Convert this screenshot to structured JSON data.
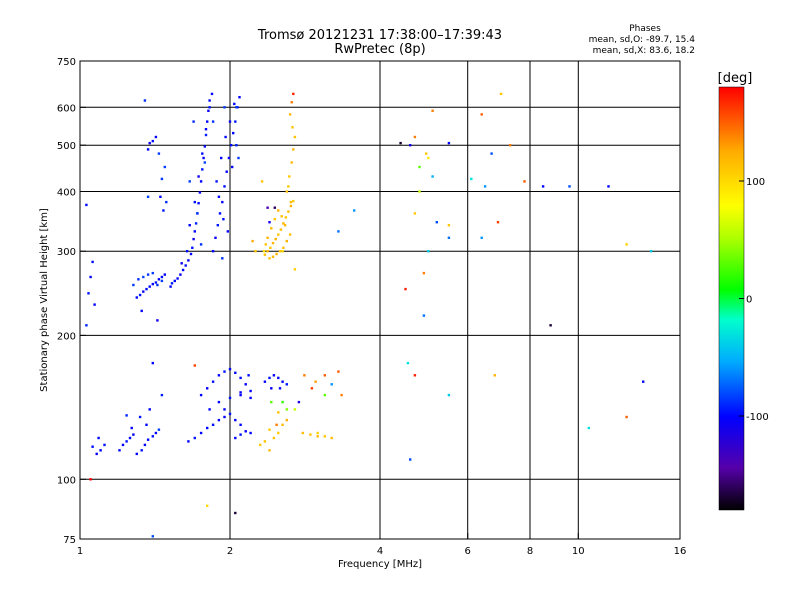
{
  "header": {
    "title_line1": "Tromsø 20121231 17:38:00–17:39:43",
    "title_line2": "RwPretec (8p)",
    "stats_title": "Phases",
    "stats_line1": "mean, sd,O: -89.7, 15.4",
    "stats_line2": "mean, sd,X: 83.6, 18.2"
  },
  "colorbar": {
    "label": "[deg]",
    "min": -180,
    "max": 180,
    "ticks": [
      {
        "value": 100,
        "label": "100"
      },
      {
        "value": 0,
        "label": "0"
      },
      {
        "value": -100,
        "label": "-100"
      }
    ]
  },
  "chart_data": {
    "type": "scatter",
    "title": "Tromsø 20121231 17:38:00–17:39:43",
    "subtitle": "RwPretec (8p)",
    "xlabel": "Frequency [MHz]",
    "ylabel": "Stationary phase Virtual Height [km]",
    "x_scale": "log",
    "y_scale": "log",
    "xlim": [
      1,
      16
    ],
    "ylim": [
      75,
      750
    ],
    "xticks": [
      {
        "v": 1,
        "l": "1"
      },
      {
        "v": 2,
        "l": "2"
      },
      {
        "v": 4,
        "l": "4"
      },
      {
        "v": 6,
        "l": "6"
      },
      {
        "v": 8,
        "l": "8"
      },
      {
        "v": 10,
        "l": "10"
      },
      {
        "v": 16,
        "l": "16"
      }
    ],
    "yticks": [
      {
        "v": 75,
        "l": "75"
      },
      {
        "v": 100,
        "l": "100"
      },
      {
        "v": 200,
        "l": "200"
      },
      {
        "v": 300,
        "l": "300"
      },
      {
        "v": 400,
        "l": "400"
      },
      {
        "v": 500,
        "l": "500"
      },
      {
        "v": 600,
        "l": "600"
      },
      {
        "v": 750,
        "l": "750"
      }
    ],
    "grid_x": [
      2,
      4,
      6,
      8,
      10
    ],
    "grid_y": [
      100,
      200,
      300,
      400,
      500,
      600
    ],
    "color_key": "phase_deg",
    "points": [
      [
        1.52,
        253,
        -100
      ],
      [
        1.53,
        257,
        -95
      ],
      [
        1.55,
        260,
        -102
      ],
      [
        1.57,
        263,
        -98
      ],
      [
        1.59,
        268,
        -105
      ],
      [
        1.61,
        274,
        -100
      ],
      [
        1.63,
        280,
        -97
      ],
      [
        1.65,
        287,
        -103
      ],
      [
        1.67,
        296,
        -100
      ],
      [
        1.68,
        305,
        -95
      ],
      [
        1.69,
        318,
        -110
      ],
      [
        1.7,
        330,
        -100
      ],
      [
        1.71,
        343,
        -92
      ],
      [
        1.72,
        360,
        -102
      ],
      [
        1.73,
        378,
        -98
      ],
      [
        1.74,
        398,
        -105
      ],
      [
        1.75,
        420,
        -100
      ],
      [
        1.76,
        445,
        -96
      ],
      [
        1.77,
        470,
        -104
      ],
      [
        1.78,
        497,
        -99
      ],
      [
        1.79,
        525,
        -93
      ],
      [
        1.8,
        560,
        -100
      ],
      [
        1.81,
        590,
        -108
      ],
      [
        1.82,
        620,
        -100
      ],
      [
        1.6,
        283,
        -105
      ],
      [
        1.64,
        300,
        -97
      ],
      [
        1.66,
        340,
        -101
      ],
      [
        1.7,
        380,
        -96
      ],
      [
        1.73,
        430,
        -108
      ],
      [
        1.76,
        480,
        -99
      ],
      [
        1.79,
        540,
        -102
      ],
      [
        1.82,
        600,
        -95
      ],
      [
        1.84,
        640,
        -100
      ],
      [
        1.85,
        300,
        -100
      ],
      [
        1.87,
        320,
        -105
      ],
      [
        1.89,
        340,
        -96
      ],
      [
        1.91,
        360,
        -99
      ],
      [
        1.93,
        380,
        -103
      ],
      [
        1.95,
        410,
        -97
      ],
      [
        1.97,
        440,
        -101
      ],
      [
        1.99,
        470,
        -104
      ],
      [
        2.01,
        500,
        -98
      ],
      [
        2.03,
        530,
        -100
      ],
      [
        2.05,
        560,
        -95
      ],
      [
        2.07,
        600,
        -102
      ],
      [
        2.09,
        630,
        -100
      ],
      [
        1.88,
        420,
        -95
      ],
      [
        1.92,
        470,
        -102
      ],
      [
        1.96,
        520,
        -98
      ],
      [
        2.0,
        560,
        -105
      ],
      [
        2.04,
        610,
        -100
      ],
      [
        1.9,
        390,
        -100
      ],
      [
        1.94,
        350,
        -96
      ],
      [
        1.98,
        330,
        -103
      ],
      [
        2.02,
        450,
        -100
      ],
      [
        2.06,
        500,
        -92
      ],
      [
        1.72,
        360,
        -85
      ],
      [
        1.75,
        310,
        -88
      ],
      [
        1.78,
        460,
        -82
      ],
      [
        1.85,
        560,
        -88
      ],
      [
        1.95,
        600,
        -86
      ],
      [
        1.69,
        560,
        -90
      ],
      [
        2.08,
        470,
        -84
      ],
      [
        1.93,
        290,
        -89
      ],
      [
        1.66,
        420,
        -84
      ],
      [
        2.06,
        600,
        -87
      ],
      [
        1.3,
        240,
        -100
      ],
      [
        1.32,
        243,
        -95
      ],
      [
        1.34,
        247,
        -105
      ],
      [
        1.36,
        250,
        -98
      ],
      [
        1.38,
        253,
        -102
      ],
      [
        1.4,
        256,
        -100
      ],
      [
        1.42,
        258,
        -96
      ],
      [
        1.44,
        262,
        -104
      ],
      [
        1.46,
        265,
        -99
      ],
      [
        1.48,
        268,
        -101
      ],
      [
        1.28,
        255,
        -85
      ],
      [
        1.31,
        262,
        -88
      ],
      [
        1.34,
        265,
        -82
      ],
      [
        1.37,
        268,
        -86
      ],
      [
        1.4,
        270,
        -84
      ],
      [
        1.43,
        255,
        -88
      ],
      [
        1.33,
        225,
        -100
      ],
      [
        1.43,
        215,
        -108
      ],
      [
        1.05,
        265,
        -100
      ],
      [
        1.04,
        245,
        -95
      ],
      [
        1.06,
        285,
        -98
      ],
      [
        1.07,
        232,
        -102
      ],
      [
        1.03,
        210,
        -92
      ],
      [
        1.37,
        490,
        -100
      ],
      [
        1.38,
        505,
        -105
      ],
      [
        1.4,
        510,
        -98
      ],
      [
        1.42,
        520,
        -102
      ],
      [
        1.45,
        390,
        -100
      ],
      [
        1.47,
        365,
        -96
      ],
      [
        1.46,
        425,
        -86
      ],
      [
        1.48,
        450,
        -84
      ],
      [
        1.44,
        480,
        -85
      ],
      [
        1.49,
        380,
        -88
      ],
      [
        1.37,
        390,
        -84
      ],
      [
        1.35,
        620,
        -88
      ],
      [
        1.46,
        260,
        -85
      ],
      [
        1.03,
        375,
        -100
      ],
      [
        2.35,
        295,
        115
      ],
      [
        2.38,
        300,
        120
      ],
      [
        2.41,
        305,
        110
      ],
      [
        2.44,
        312,
        118
      ],
      [
        2.47,
        318,
        122
      ],
      [
        2.5,
        325,
        112
      ],
      [
        2.53,
        333,
        116
      ],
      [
        2.56,
        343,
        120
      ],
      [
        2.59,
        353,
        110
      ],
      [
        2.62,
        363,
        115
      ],
      [
        2.65,
        373,
        122
      ],
      [
        2.68,
        382,
        108
      ],
      [
        2.4,
        290,
        112
      ],
      [
        2.44,
        292,
        118
      ],
      [
        2.48,
        296,
        120
      ],
      [
        2.52,
        300,
        110
      ],
      [
        2.56,
        305,
        116
      ],
      [
        2.6,
        315,
        122
      ],
      [
        2.64,
        325,
        113
      ],
      [
        2.58,
        340,
        118
      ],
      [
        2.54,
        355,
        115
      ],
      [
        2.5,
        365,
        120
      ],
      [
        2.46,
        350,
        110
      ],
      [
        2.42,
        335,
        117
      ],
      [
        2.38,
        320,
        121
      ],
      [
        2.36,
        310,
        112
      ],
      [
        2.6,
        400,
        115
      ],
      [
        2.63,
        430,
        110
      ],
      [
        2.66,
        460,
        118
      ],
      [
        2.68,
        490,
        120
      ],
      [
        2.7,
        520,
        114
      ],
      [
        2.67,
        545,
        112
      ],
      [
        2.64,
        580,
        118
      ],
      [
        2.66,
        615,
        140
      ],
      [
        2.68,
        640,
        170
      ],
      [
        2.62,
        410,
        108
      ],
      [
        2.65,
        380,
        116
      ],
      [
        2.38,
        370,
        -140
      ],
      [
        2.46,
        370,
        -160
      ],
      [
        2.25,
        300,
        110
      ],
      [
        2.22,
        315,
        125
      ],
      [
        2.32,
        420,
        112
      ],
      [
        2.4,
        345,
        -110
      ],
      [
        2.34,
        300,
        95
      ],
      [
        2.55,
        300,
        100
      ],
      [
        2.7,
        275,
        105
      ],
      [
        1.1,
        115,
        -100
      ],
      [
        1.12,
        118,
        -95
      ],
      [
        1.08,
        113,
        -105
      ],
      [
        1.06,
        117,
        -98
      ],
      [
        1.09,
        122,
        -100
      ],
      [
        1.2,
        115,
        -100
      ],
      [
        1.22,
        118,
        -102
      ],
      [
        1.24,
        120,
        -95
      ],
      [
        1.26,
        122,
        -100
      ],
      [
        1.28,
        124,
        -104
      ],
      [
        1.3,
        113,
        -100
      ],
      [
        1.33,
        115,
        -96
      ],
      [
        1.35,
        118,
        -102
      ],
      [
        1.37,
        121,
        -100
      ],
      [
        1.4,
        123,
        -97
      ],
      [
        1.42,
        125,
        -100
      ],
      [
        1.27,
        128,
        -102
      ],
      [
        1.32,
        135,
        -95
      ],
      [
        1.36,
        130,
        -100
      ],
      [
        1.38,
        140,
        -103
      ],
      [
        1.4,
        175,
        -100
      ],
      [
        1.46,
        150,
        -94
      ],
      [
        1.24,
        136,
        -90
      ],
      [
        1.44,
        127,
        -84
      ],
      [
        1.65,
        120,
        -100
      ],
      [
        1.7,
        122,
        -95
      ],
      [
        1.75,
        125,
        -102
      ],
      [
        1.8,
        128,
        -100
      ],
      [
        1.85,
        130,
        -97
      ],
      [
        1.9,
        133,
        -104
      ],
      [
        1.95,
        135,
        -100
      ],
      [
        2.0,
        137,
        -96
      ],
      [
        2.05,
        133,
        -102
      ],
      [
        2.1,
        130,
        -100
      ],
      [
        1.75,
        150,
        -100
      ],
      [
        1.8,
        155,
        -104
      ],
      [
        1.85,
        160,
        -98
      ],
      [
        1.9,
        165,
        -100
      ],
      [
        1.95,
        168,
        -96
      ],
      [
        2.0,
        170,
        -102
      ],
      [
        2.05,
        167,
        -100
      ],
      [
        2.1,
        163,
        -97
      ],
      [
        2.15,
        158,
        -103
      ],
      [
        2.2,
        153,
        -100
      ],
      [
        1.9,
        145,
        -100
      ],
      [
        2.0,
        148,
        -95
      ],
      [
        2.1,
        152,
        -102
      ],
      [
        2.2,
        148,
        -100
      ],
      [
        1.82,
        140,
        -100
      ],
      [
        1.95,
        140,
        -104
      ],
      [
        2.05,
        122,
        -100
      ],
      [
        2.1,
        124,
        -96
      ],
      [
        2.15,
        126,
        -102
      ],
      [
        2.2,
        125,
        -100
      ],
      [
        2.1,
        150,
        -100
      ],
      [
        2.18,
        165,
        -98
      ],
      [
        2.35,
        160,
        -100
      ],
      [
        2.4,
        163,
        -96
      ],
      [
        2.45,
        165,
        -102
      ],
      [
        2.5,
        163,
        -100
      ],
      [
        2.55,
        160,
        -100
      ],
      [
        2.6,
        158,
        -95
      ],
      [
        2.42,
        155,
        -104
      ],
      [
        2.52,
        155,
        -98
      ],
      [
        2.3,
        118,
        110
      ],
      [
        2.35,
        120,
        115
      ],
      [
        2.4,
        115,
        118
      ],
      [
        2.45,
        122,
        112
      ],
      [
        2.5,
        125,
        108
      ],
      [
        2.55,
        130,
        118
      ],
      [
        2.6,
        133,
        122
      ],
      [
        2.4,
        127,
        110
      ],
      [
        2.5,
        138,
        112
      ],
      [
        2.42,
        145,
        30
      ],
      [
        2.55,
        145,
        20
      ],
      [
        2.6,
        140,
        40
      ],
      [
        2.7,
        140,
        60
      ],
      [
        2.48,
        130,
        140
      ],
      [
        2.8,
        125,
        115
      ],
      [
        2.9,
        124,
        112
      ],
      [
        3.0,
        123,
        118
      ],
      [
        3.1,
        123,
        110
      ],
      [
        3.2,
        122,
        115
      ],
      [
        3.0,
        125,
        105
      ],
      [
        2.82,
        165,
        140
      ],
      [
        2.92,
        155,
        160
      ],
      [
        2.97,
        160,
        130
      ],
      [
        3.1,
        165,
        150
      ],
      [
        3.2,
        158,
        -60
      ],
      [
        3.3,
        168,
        150
      ],
      [
        3.1,
        150,
        30
      ],
      [
        2.75,
        145,
        -115
      ],
      [
        4.6,
        500,
        -110
      ],
      [
        4.7,
        520,
        140
      ],
      [
        5.5,
        505,
        -100
      ],
      [
        6.4,
        580,
        150
      ],
      [
        6.7,
        480,
        -80
      ],
      [
        7.0,
        640,
        110
      ],
      [
        7.3,
        500,
        140
      ],
      [
        7.8,
        420,
        150
      ],
      [
        5.0,
        470,
        90
      ],
      [
        5.1,
        590,
        140
      ],
      [
        4.4,
        505,
        -170
      ],
      [
        4.8,
        450,
        30
      ],
      [
        4.8,
        400,
        60
      ],
      [
        4.95,
        480,
        110
      ],
      [
        5.1,
        430,
        -50
      ],
      [
        4.7,
        360,
        110
      ],
      [
        5.5,
        340,
        110
      ],
      [
        5.5,
        320,
        -70
      ],
      [
        6.4,
        320,
        -60
      ],
      [
        6.9,
        345,
        160
      ],
      [
        6.5,
        410,
        -60
      ],
      [
        8.5,
        410,
        -100
      ],
      [
        11.5,
        410,
        -100
      ],
      [
        9.6,
        410,
        -80
      ],
      [
        6.1,
        425,
        -30
      ],
      [
        3.3,
        330,
        -70
      ],
      [
        3.55,
        365,
        -60
      ],
      [
        5.0,
        300,
        -40
      ],
      [
        4.9,
        270,
        140
      ],
      [
        4.5,
        250,
        170
      ],
      [
        5.2,
        345,
        -80
      ],
      [
        14.0,
        300,
        -40
      ],
      [
        12.5,
        310,
        105
      ],
      [
        4.7,
        165,
        170
      ],
      [
        4.9,
        220,
        -70
      ],
      [
        4.55,
        175,
        -30
      ],
      [
        4.6,
        110,
        -80
      ],
      [
        6.8,
        165,
        120
      ],
      [
        5.5,
        150,
        -40
      ],
      [
        10.5,
        128,
        -30
      ],
      [
        12.5,
        135,
        150
      ],
      [
        13.5,
        160,
        -100
      ],
      [
        8.8,
        210,
        -170
      ],
      [
        1.05,
        100,
        180
      ],
      [
        1.4,
        76,
        -80
      ],
      [
        2.05,
        85,
        -170
      ],
      [
        1.8,
        88,
        100
      ],
      [
        1.7,
        173,
        160
      ],
      [
        3.35,
        150,
        140
      ]
    ]
  }
}
